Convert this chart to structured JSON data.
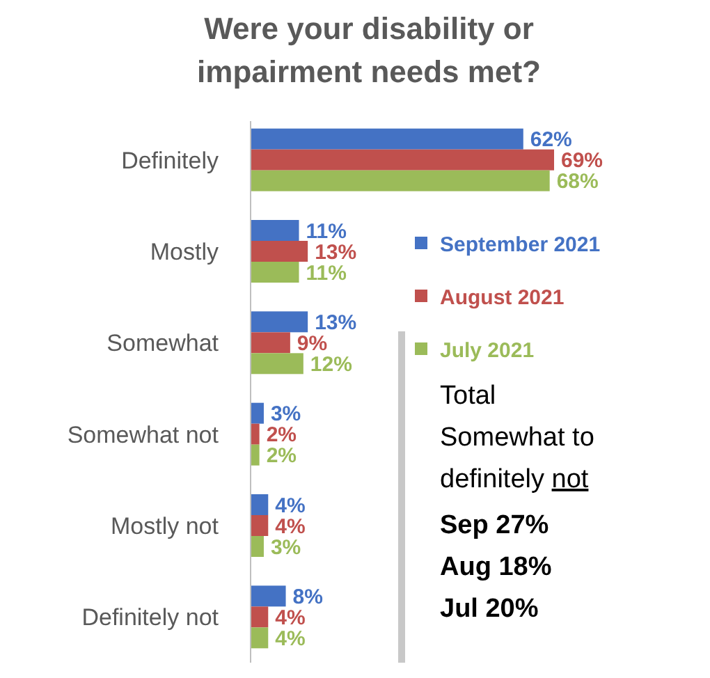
{
  "chart_data": {
    "type": "bar",
    "orientation": "horizontal",
    "title": "Were your disability or impairment needs met?",
    "categories": [
      "Definitely",
      "Mostly",
      "Somewhat",
      "Somewhat not",
      "Mostly not",
      "Definitely not"
    ],
    "series": [
      {
        "name": "September 2021",
        "color": "#4472c4",
        "values": [
          62,
          11,
          13,
          3,
          4,
          8
        ],
        "value_labels": [
          "62%",
          "11%",
          "13%",
          "3%",
          "4%",
          "8%"
        ]
      },
      {
        "name": "August 2021",
        "color": "#c0504d",
        "values": [
          69,
          13,
          9,
          2,
          4,
          4
        ],
        "value_labels": [
          "69%",
          "13%",
          "9%",
          "2%",
          "4%",
          "4%"
        ]
      },
      {
        "name": "July 2021",
        "color": "#9bbb59",
        "values": [
          68,
          11,
          12,
          2,
          3,
          4
        ],
        "value_labels": [
          "68%",
          "11%",
          "12%",
          "2%",
          "3%",
          "4%"
        ]
      }
    ],
    "legend": "right",
    "annotations": [
      "Total Somewhat to definitely not",
      "Sep 27%",
      "Aug 18%",
      "Jul 20%"
    ]
  }
}
